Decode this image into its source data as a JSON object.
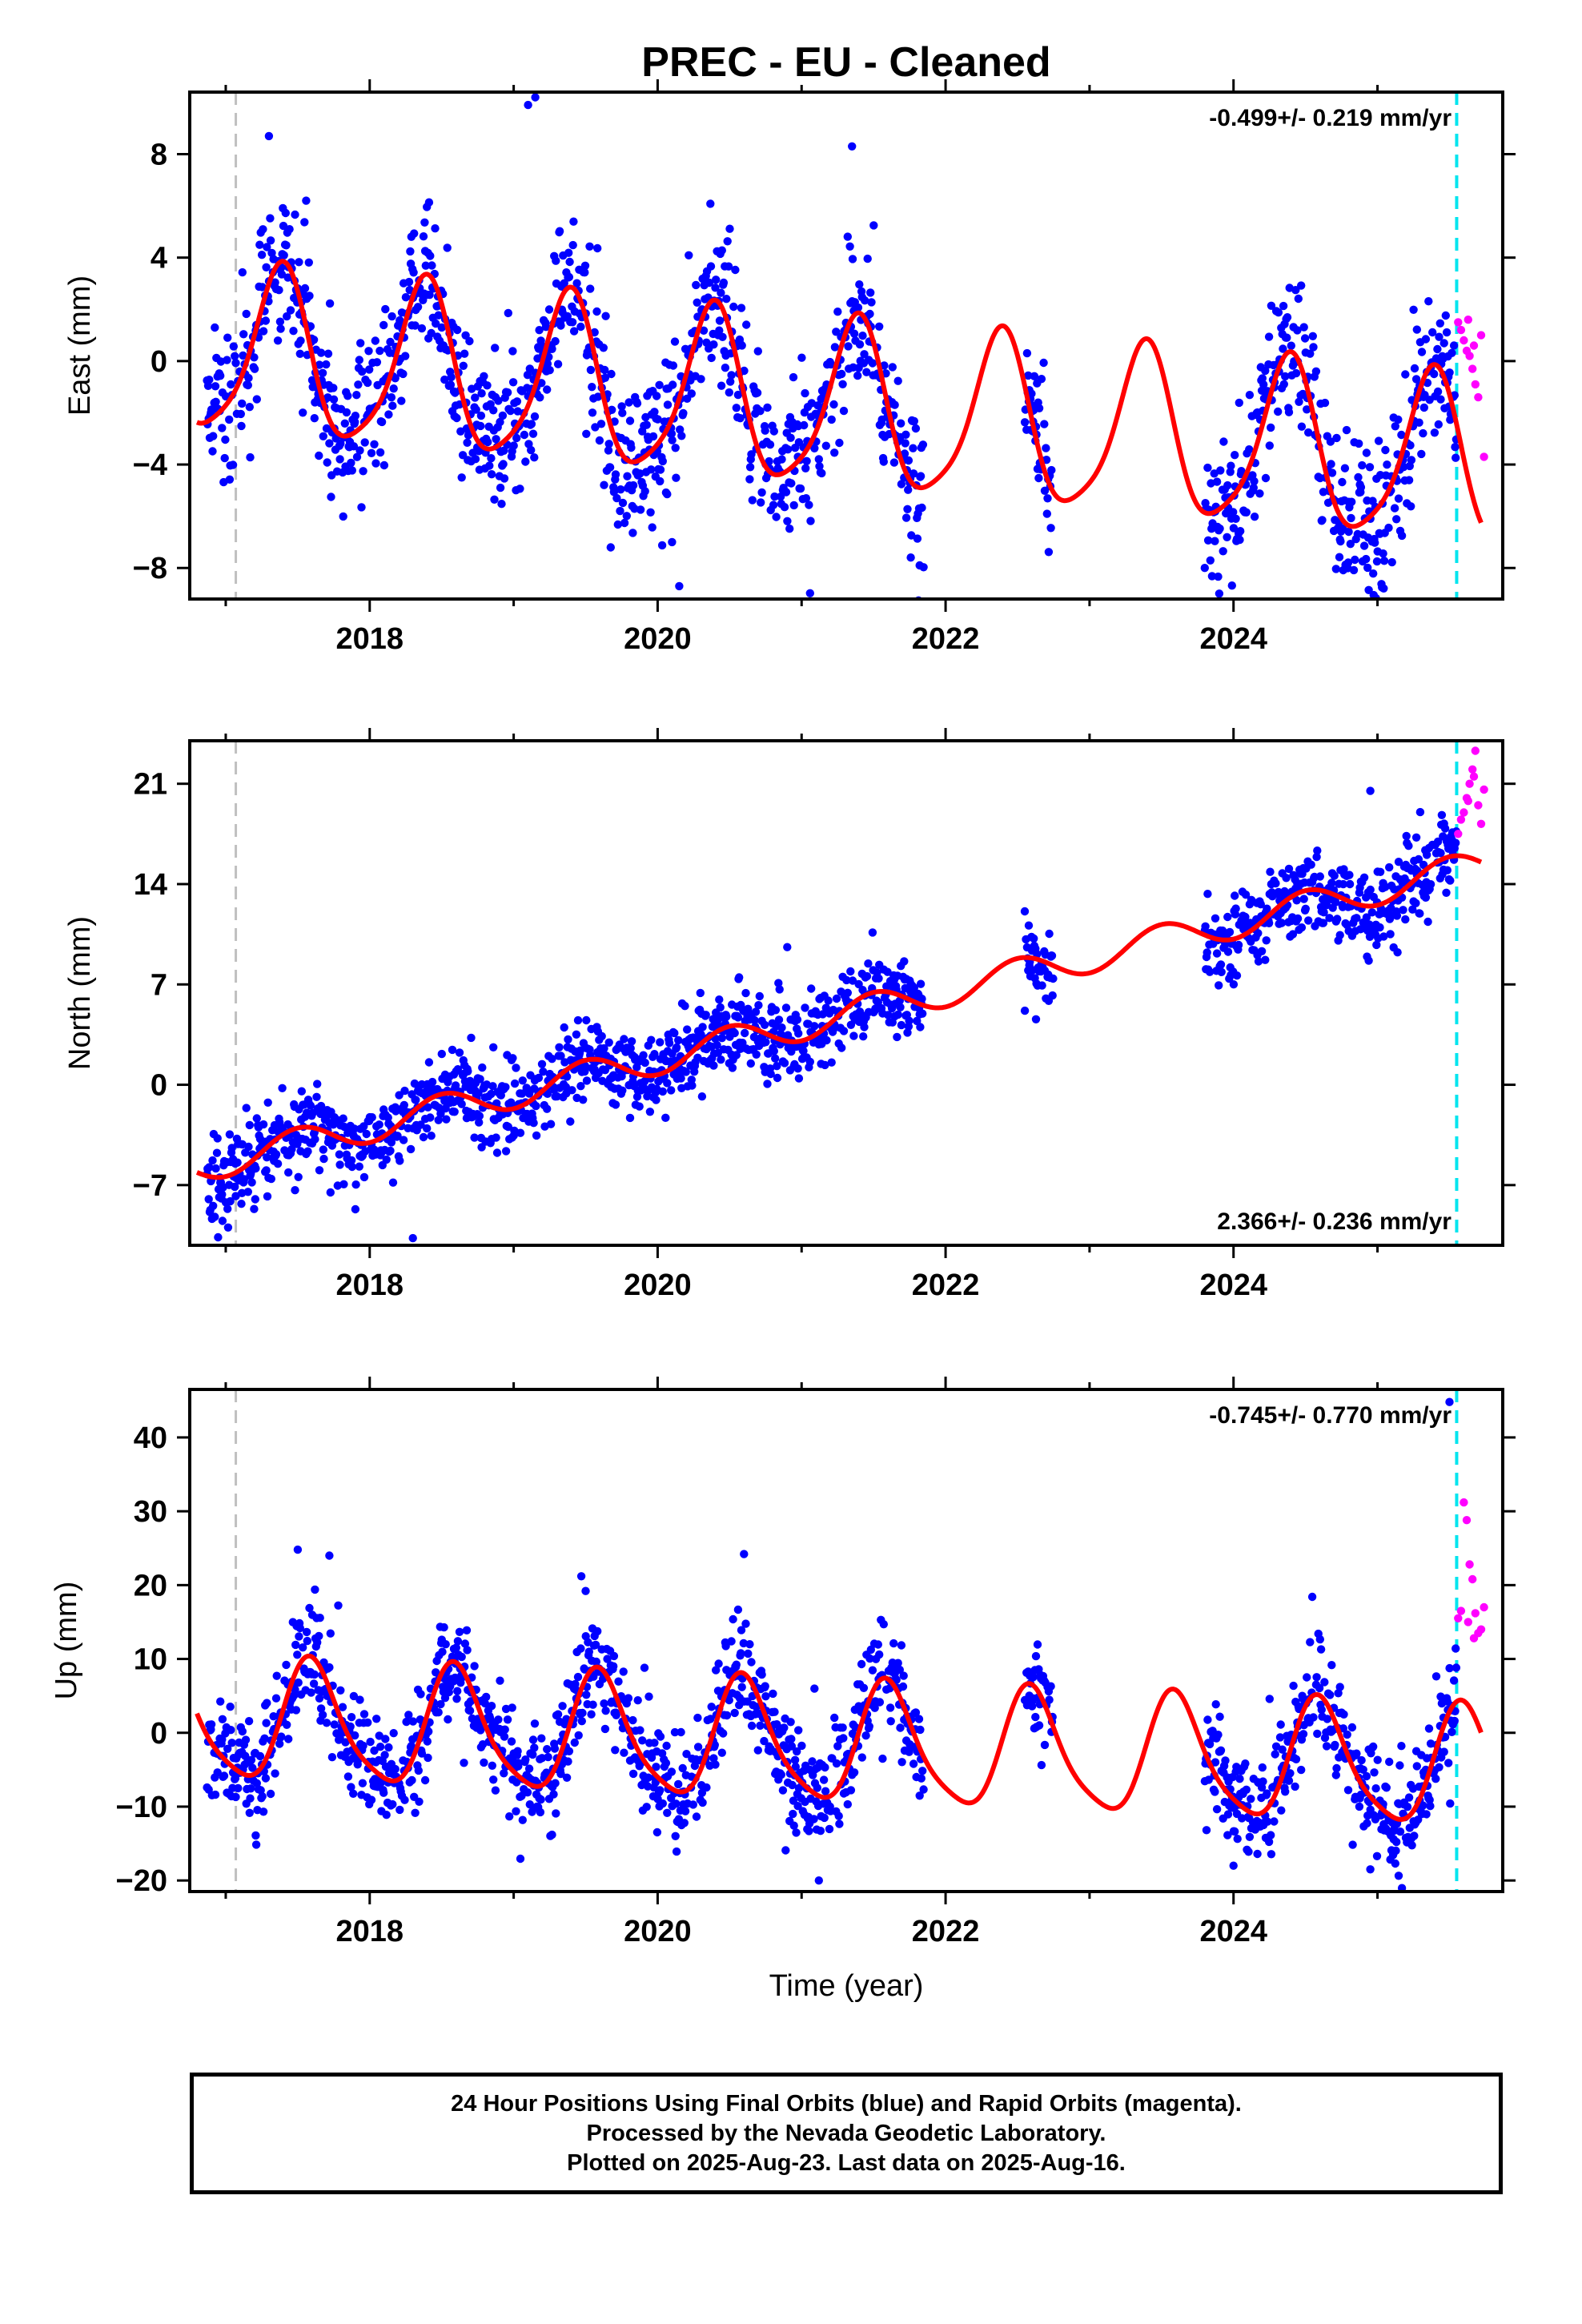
{
  "title": "PREC  - EU - Cleaned",
  "colors": {
    "final_orbits": "#0000ff",
    "rapid_orbits": "#ff00ff",
    "model_fit": "#ff0000",
    "start_line": "#c0c0c0",
    "end_line": "#00e5ee",
    "axes": "#000000"
  },
  "footer": {
    "line1": "24 Hour Positions Using Final Orbits (blue) and Rapid Orbits (magenta).",
    "line2": "Processed by the Nevada Geodetic Laboratory.",
    "line3": "Plotted on 2025-Aug-23. Last data on 2025-Aug-16."
  },
  "chart_data": [
    {
      "type": "scatter",
      "name": "east",
      "ylabel": "East (mm)",
      "xlabel": "",
      "xlim": [
        2016.75,
        2025.87
      ],
      "ylim": [
        -9.2,
        10.4
      ],
      "yticks": [
        "8",
        "4",
        "0",
        "−4",
        "−8"
      ],
      "ytick_values": [
        8,
        4,
        0,
        -4,
        -8
      ],
      "xticks": [
        "2018",
        "2020",
        "2022",
        "2024"
      ],
      "xtick_values": [
        2018,
        2020,
        2022,
        2024
      ],
      "rate_text": "-0.499+/- 0.219 mm/yr",
      "rate_position": "top-right",
      "reference_lines": {
        "start": 2017.07,
        "end": 2025.55
      },
      "model": {
        "offset": 0.3,
        "rate": -0.499,
        "annual_amplitude": 3.2,
        "annual_peak": 0.38,
        "semiannual_amplitude": 0.6,
        "semiannual_peak": 0.42
      },
      "gaps": [
        [
          2021.85,
          2022.55
        ],
        [
          2022.75,
          2023.8
        ]
      ],
      "scatter_sigma": 1.5,
      "n_points_per_year": 260,
      "outliers": [
        [
          2017.3,
          8.7
        ],
        [
          2019.1,
          9.9
        ],
        [
          2019.15,
          10.2
        ],
        [
          2021.35,
          8.3
        ],
        [
          2020.1,
          -7.0
        ],
        [
          2020.15,
          -8.7
        ],
        [
          2023.8,
          -8.0
        ],
        [
          2024.8,
          -6.6
        ]
      ],
      "rapid_points": [
        [
          2025.56,
          1.5
        ],
        [
          2025.58,
          1.2
        ],
        [
          2025.6,
          0.8
        ],
        [
          2025.62,
          0.4
        ],
        [
          2025.64,
          0.2
        ],
        [
          2025.66,
          -0.3
        ],
        [
          2025.68,
          -0.9
        ],
        [
          2025.7,
          -1.4
        ],
        [
          2025.72,
          1.0
        ],
        [
          2025.74,
          -3.7
        ],
        [
          2025.63,
          1.6
        ],
        [
          2025.67,
          0.6
        ]
      ]
    },
    {
      "type": "scatter",
      "name": "north",
      "ylabel": "North (mm)",
      "xlabel": "",
      "xlim": [
        2016.75,
        2025.87
      ],
      "ylim": [
        -11.2,
        24.0
      ],
      "yticks": [
        "21",
        "14",
        "7",
        "0",
        "−7"
      ],
      "ytick_values": [
        21,
        14,
        7,
        0,
        -7
      ],
      "xticks": [
        "2018",
        "2020",
        "2022",
        "2024"
      ],
      "xtick_values": [
        2018,
        2020,
        2022,
        2024
      ],
      "rate_text": "2.366+/- 0.236 mm/yr",
      "rate_position": "bottom-right",
      "reference_lines": {
        "start": 2017.07,
        "end": 2025.55
      },
      "model": {
        "offset": -5.3,
        "rate": 2.366,
        "annual_amplitude": 1.1,
        "annual_peak": 0.5,
        "semiannual_amplitude": 0.0,
        "semiannual_peak": 0.0
      },
      "gaps": [
        [
          2021.85,
          2022.55
        ],
        [
          2022.75,
          2023.8
        ]
      ],
      "scatter_sigma": 1.5,
      "n_points_per_year": 260,
      "outliers": [
        [
          2020.9,
          9.6
        ],
        [
          2022.55,
          12.1
        ],
        [
          2024.95,
          20.5
        ],
        [
          2018.3,
          -10.7
        ]
      ],
      "rapid_points": [
        [
          2025.56,
          17.5
        ],
        [
          2025.58,
          18.5
        ],
        [
          2025.6,
          19.0
        ],
        [
          2025.62,
          20.0
        ],
        [
          2025.64,
          21.0
        ],
        [
          2025.66,
          22.0
        ],
        [
          2025.68,
          23.3
        ],
        [
          2025.7,
          19.5
        ],
        [
          2025.72,
          18.2
        ],
        [
          2025.74,
          20.6
        ],
        [
          2025.63,
          19.8
        ],
        [
          2025.67,
          21.5
        ]
      ]
    },
    {
      "type": "scatter",
      "name": "up",
      "ylabel": "Up (mm)",
      "xlabel": "Time (year)",
      "xlim": [
        2016.75,
        2025.87
      ],
      "ylim": [
        -21.5,
        46.5
      ],
      "yticks": [
        "40",
        "30",
        "20",
        "10",
        "0",
        "−10",
        "−20"
      ],
      "ytick_values": [
        40,
        30,
        20,
        10,
        0,
        -10,
        -20
      ],
      "xticks": [
        "2018",
        "2020",
        "2022",
        "2024"
      ],
      "xtick_values": [
        2018,
        2020,
        2022,
        2024
      ],
      "rate_text": "-0.745+/- 0.770 mm/yr",
      "rate_position": "top-right",
      "reference_lines": {
        "start": 2017.07,
        "end": 2025.55
      },
      "model": {
        "offset": 1.5,
        "rate": -0.745,
        "annual_amplitude": 8.0,
        "annual_peak": 0.6,
        "semiannual_amplitude": 1.5,
        "semiannual_peak": 0.55
      },
      "gaps": [
        [
          2021.85,
          2022.55
        ],
        [
          2022.75,
          2023.8
        ]
      ],
      "scatter_sigma": 3.8,
      "n_points_per_year": 260,
      "outliers": [
        [
          2017.5,
          24.8
        ],
        [
          2017.72,
          24.0
        ],
        [
          2020.6,
          24.2
        ],
        [
          2021.12,
          -20.0
        ],
        [
          2024.0,
          -18.0
        ],
        [
          2024.95,
          -18.5
        ],
        [
          2025.5,
          44.8
        ],
        [
          2019.5,
          19.2
        ]
      ],
      "rapid_points": [
        [
          2025.56,
          15.5
        ],
        [
          2025.58,
          16.5
        ],
        [
          2025.6,
          31.2
        ],
        [
          2025.62,
          28.8
        ],
        [
          2025.64,
          22.8
        ],
        [
          2025.66,
          20.8
        ],
        [
          2025.68,
          16.2
        ],
        [
          2025.7,
          13.5
        ],
        [
          2025.72,
          14.0
        ],
        [
          2025.74,
          17.0
        ],
        [
          2025.63,
          15.0
        ],
        [
          2025.67,
          12.8
        ]
      ]
    }
  ]
}
